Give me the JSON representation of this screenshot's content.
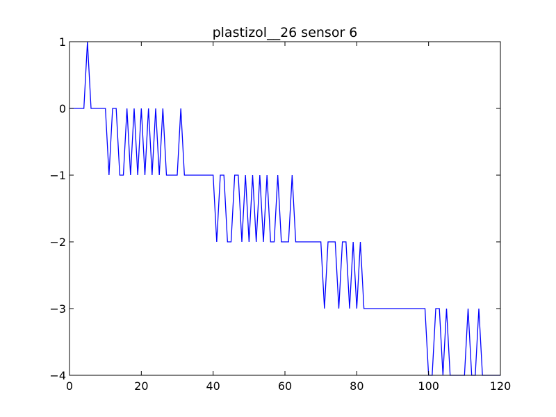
{
  "chart_data": {
    "type": "line",
    "title": "plastizol__26 sensor 6",
    "xlabel": "",
    "ylabel": "",
    "xlim": [
      0,
      120
    ],
    "ylim": [
      -4,
      1
    ],
    "x_ticks": [
      0,
      20,
      40,
      60,
      80,
      100,
      120
    ],
    "x_tick_labels": [
      "0",
      "20",
      "40",
      "60",
      "80",
      "100",
      "120"
    ],
    "y_ticks": [
      1,
      0,
      -1,
      -2,
      -3,
      -4
    ],
    "y_tick_labels": [
      "1",
      "0",
      "−1",
      "−2",
      "−3",
      "−4"
    ],
    "grid": false,
    "legend": "none",
    "series": [
      {
        "color": "#0000ff",
        "x": [
          0,
          1,
          2,
          3,
          4,
          5,
          6,
          7,
          8,
          9,
          10,
          11,
          12,
          13,
          14,
          15,
          16,
          17,
          18,
          19,
          20,
          21,
          22,
          23,
          24,
          25,
          26,
          27,
          28,
          29,
          30,
          31,
          32,
          33,
          34,
          35,
          36,
          37,
          38,
          39,
          40,
          41,
          42,
          43,
          44,
          45,
          46,
          47,
          48,
          49,
          50,
          51,
          52,
          53,
          54,
          55,
          56,
          57,
          58,
          59,
          60,
          61,
          62,
          63,
          64,
          65,
          66,
          67,
          68,
          69,
          70,
          71,
          72,
          73,
          74,
          75,
          76,
          77,
          78,
          79,
          80,
          81,
          82,
          83,
          84,
          85,
          86,
          87,
          88,
          89,
          90,
          91,
          92,
          93,
          94,
          95,
          96,
          97,
          98,
          99,
          100,
          101,
          102,
          103,
          104,
          105,
          106,
          107,
          108,
          109,
          110,
          111,
          112,
          113,
          114,
          115,
          116,
          117,
          118,
          119,
          120
        ],
        "y": [
          0,
          0,
          0,
          0,
          0,
          1,
          0,
          0,
          0,
          0,
          0,
          -1,
          0,
          0,
          -1,
          -1,
          0,
          -1,
          0,
          -1,
          0,
          -1,
          0,
          -1,
          0,
          -1,
          0,
          -1,
          -1,
          -1,
          -1,
          0,
          -1,
          -1,
          -1,
          -1,
          -1,
          -1,
          -1,
          -1,
          -1,
          -2,
          -1,
          -1,
          -2,
          -2,
          -1,
          -1,
          -2,
          -1,
          -2,
          -1,
          -2,
          -1,
          -2,
          -1,
          -2,
          -2,
          -1,
          -2,
          -2,
          -2,
          -1,
          -2,
          -2,
          -2,
          -2,
          -2,
          -2,
          -2,
          -2,
          -3,
          -2,
          -2,
          -2,
          -3,
          -2,
          -2,
          -3,
          -2,
          -3,
          -2,
          -3,
          -3,
          -3,
          -3,
          -3,
          -3,
          -3,
          -3,
          -3,
          -3,
          -3,
          -3,
          -3,
          -3,
          -3,
          -3,
          -3,
          -3,
          -4,
          -4,
          -3,
          -3,
          -4,
          -3,
          -4,
          -4,
          -4,
          -4,
          -4,
          -3,
          -4,
          -4,
          -3,
          -4,
          -4,
          -4,
          -4,
          -4,
          -4
        ]
      }
    ]
  }
}
